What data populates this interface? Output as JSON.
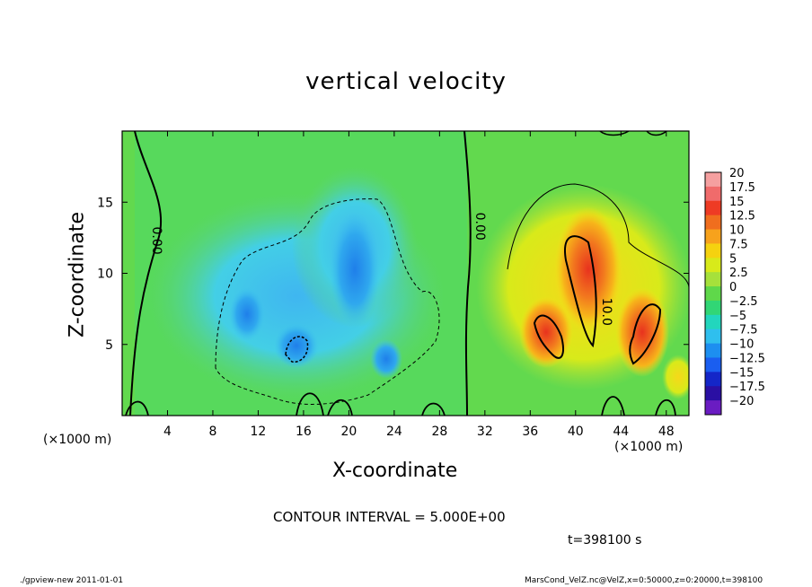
{
  "chart_data": {
    "type": "heatmap",
    "title": "vertical velocity",
    "xlabel": "X-coordinate",
    "ylabel": "Z-coordinate",
    "x_unit_left": "(×1000 m)",
    "x_unit_right": "(×1000 m)",
    "xlim": [
      0,
      50
    ],
    "ylim": [
      0,
      20
    ],
    "x_ticks": [
      4,
      8,
      12,
      16,
      20,
      24,
      28,
      32,
      36,
      40,
      44,
      48
    ],
    "y_ticks": [
      5,
      10,
      15
    ],
    "contour_interval_text": "CONTOUR INTERVAL = 5.000E+00",
    "time_text": "t=398100 s",
    "contour_labels": [
      {
        "text": "0.00",
        "x": 2.7,
        "y": 12.3
      },
      {
        "text": "0.00",
        "x": 31.2,
        "y": 13.3
      },
      {
        "text": "10.0",
        "x": 42.4,
        "y": 7.3
      }
    ],
    "colorbar": {
      "levels": [
        20,
        17.5,
        15,
        12.5,
        10,
        7.5,
        5,
        2.5,
        0,
        -2.5,
        -5,
        -7.5,
        -10,
        -12.5,
        -15,
        -17.5,
        -20
      ],
      "labels": [
        "20",
        "17.5",
        "15",
        "12.5",
        "10",
        "7.5",
        "5",
        "2.5",
        "0",
        "−2.5",
        "−5",
        "−7.5",
        "−10",
        "−12.5",
        "−15",
        "−17.5",
        "−20"
      ],
      "colors": [
        "#f5a0a0",
        "#f06b6b",
        "#ee3b24",
        "#f06e1e",
        "#f7a21c",
        "#f5d20f",
        "#d8ea1a",
        "#a6e13b",
        "#5fd84a",
        "#31d675",
        "#22d6bd",
        "#2fbfee",
        "#1d8ff0",
        "#1a5ef0",
        "#1426c8",
        "#2a0fa3",
        "#6a1cc2"
      ]
    },
    "features": [
      {
        "name": "downdraft",
        "x": 11,
        "z": 7.5,
        "value": -6
      },
      {
        "name": "downdraft",
        "x": 15.5,
        "z": 4.8,
        "value": -8
      },
      {
        "name": "downdraft",
        "x": 20,
        "z": 10,
        "value": -6
      },
      {
        "name": "downdraft",
        "x": 23.5,
        "z": 3.5,
        "value": -5
      },
      {
        "name": "updraft",
        "x": 40.5,
        "z": 9.5,
        "value": 14
      },
      {
        "name": "updraft",
        "x": 37.5,
        "z": 6,
        "value": 11
      },
      {
        "name": "updraft",
        "x": 45,
        "z": 6,
        "value": 11
      },
      {
        "name": "updraft",
        "x": 43,
        "z": 12,
        "value": 7
      }
    ]
  },
  "footer": {
    "left": "./gpview-new   2011-01-01",
    "right": "MarsCond_VelZ.nc@VelZ,x=0:50000,z=0:20000,t=398100"
  }
}
